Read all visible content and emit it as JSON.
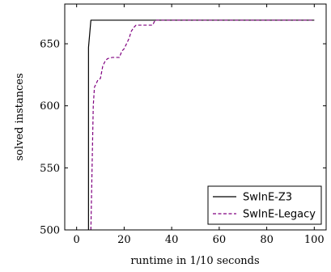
{
  "chart_data": {
    "type": "line",
    "xlabel": "runtime in 1/10 seconds",
    "ylabel": "solved instances",
    "xlim": [
      -5,
      105
    ],
    "ylim": [
      500,
      682
    ],
    "x_ticks": [
      0,
      20,
      40,
      60,
      80,
      100
    ],
    "y_ticks": [
      500,
      550,
      600,
      650
    ],
    "grid": false,
    "legend_position": "bottom-right",
    "series": [
      {
        "name": "SwInE-Z3",
        "color": "#000000",
        "dash": "solid",
        "points": [
          [
            5,
            500
          ],
          [
            5,
            647
          ],
          [
            6,
            669
          ],
          [
            100,
            669
          ]
        ]
      },
      {
        "name": "SwInE-Legacy",
        "color": "#800080",
        "dash": "dashed",
        "points": [
          [
            6,
            500
          ],
          [
            7,
            600
          ],
          [
            7.5,
            615
          ],
          [
            9,
            621
          ],
          [
            10,
            622
          ],
          [
            11,
            632
          ],
          [
            12,
            636
          ],
          [
            13,
            638
          ],
          [
            15,
            639
          ],
          [
            18,
            639
          ],
          [
            19,
            644
          ],
          [
            20,
            646
          ],
          [
            21,
            650
          ],
          [
            22,
            654
          ],
          [
            23,
            660
          ],
          [
            24,
            663
          ],
          [
            25,
            665
          ],
          [
            32,
            665
          ],
          [
            33,
            669
          ],
          [
            100,
            669
          ]
        ]
      }
    ]
  }
}
